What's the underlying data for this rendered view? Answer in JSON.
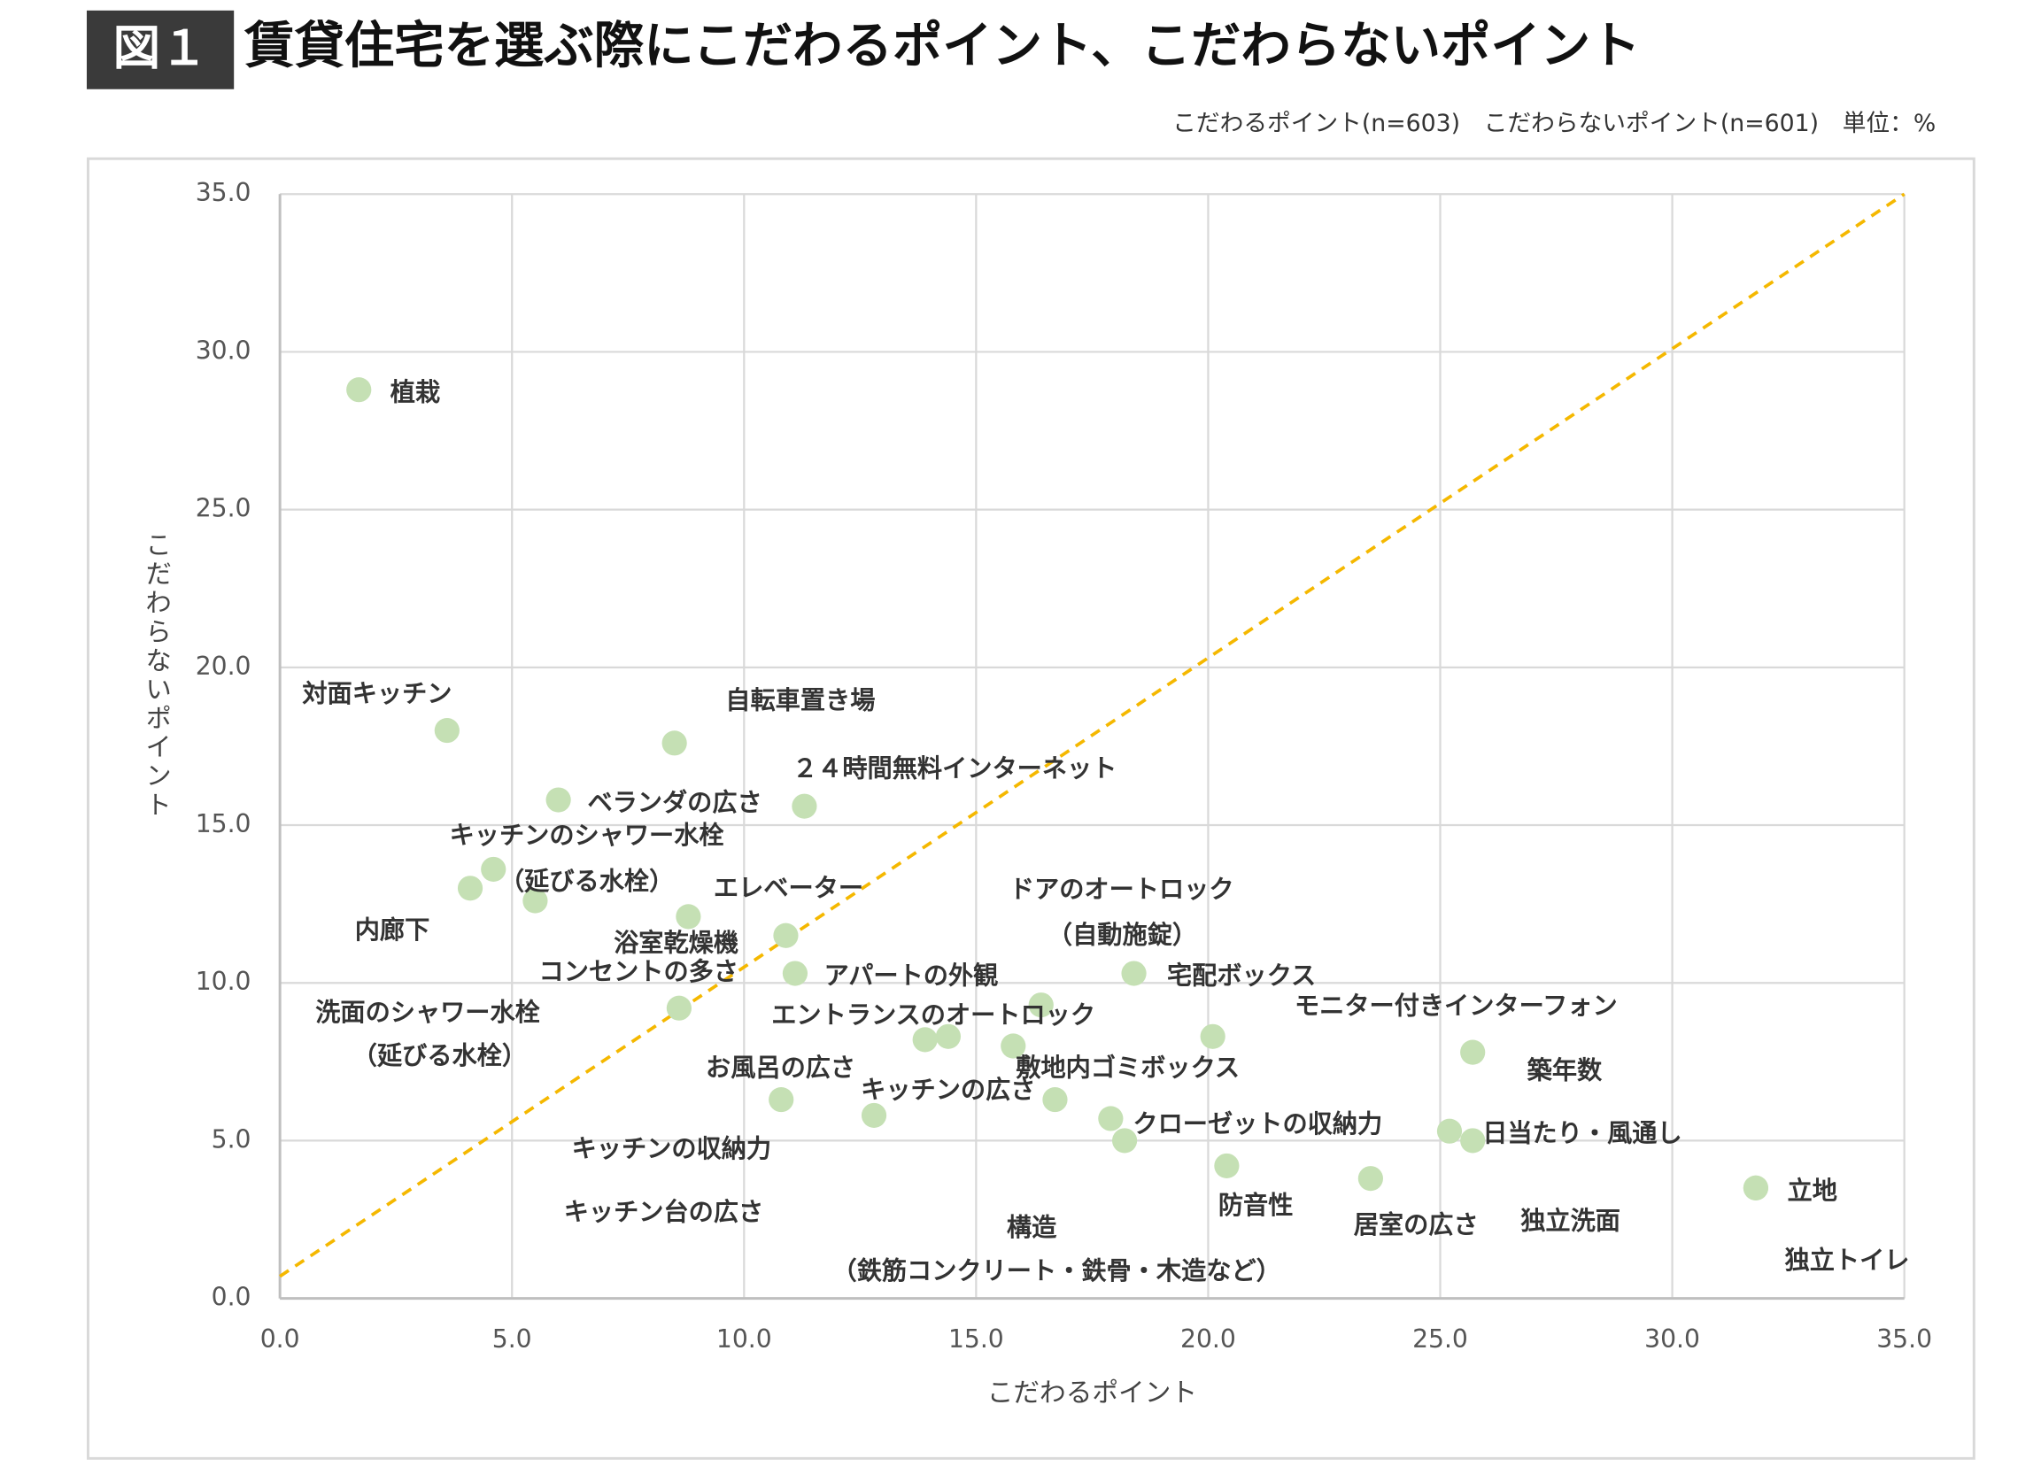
{
  "chart_data": {
    "type": "scatter",
    "figure_label": "図１",
    "title": "賃貸住宅を選ぶ際にこだわるポイント、こだわらないポイント",
    "subtitle": "こだわるポイント(n=603)　こだわらないポイント(n=601)　単位：%",
    "x_label": "こだわるポイント",
    "y_label": "こだわらないポイント",
    "xlim": [
      0,
      35
    ],
    "ylim": [
      0,
      35
    ],
    "xticks": [
      {
        "value": 0,
        "label": "0.0"
      },
      {
        "value": 5,
        "label": "5.0"
      },
      {
        "value": 10,
        "label": "10.0"
      },
      {
        "value": 15,
        "label": "15.0"
      },
      {
        "value": 20,
        "label": "20.0"
      },
      {
        "value": 25,
        "label": "25.0"
      },
      {
        "value": 30,
        "label": "30.0"
      },
      {
        "value": 35,
        "label": "35.0"
      }
    ],
    "yticks": [
      {
        "value": 0,
        "label": "0.0"
      },
      {
        "value": 5,
        "label": "5.0"
      },
      {
        "value": 10,
        "label": "10.0"
      },
      {
        "value": 15,
        "label": "15.0"
      },
      {
        "value": 20,
        "label": "20.0"
      },
      {
        "value": 25,
        "label": "25.0"
      },
      {
        "value": 30,
        "label": "30.0"
      },
      {
        "value": 35,
        "label": "35.0"
      }
    ],
    "grid": true,
    "color": "#c5e0b4",
    "reference_line": {
      "x": [
        0,
        35
      ],
      "y": [
        0.7,
        35
      ],
      "color": "#f5b800"
    },
    "labels": [
      "植栽",
      "対面キッチン",
      "自転車置き場",
      "ベランダの広さ",
      "２４時間無料インターネット",
      "キッチンのシャワー水栓（延びる水栓）",
      "内廊下",
      "洗面のシャワー水栓（延びる水栓）",
      "エレベーター",
      "浴室乾燥機",
      "コンセントの多さ",
      "アパートの外観",
      "ドアのオートロック（自動施錠）",
      "宅配ボックス",
      "エントランスのオートロック",
      "お風呂の広さ",
      "敷地内ゴミボックス",
      "キッチンの広さ",
      "モニター付きインターフォン",
      "築年数",
      "キッチンの収納力",
      "キッチン台の広さ",
      "クローゼットの収納力",
      "構造（鉄筋コンクリート・鉄骨・木造など）",
      "日当たり・風通し",
      "独立洗面",
      "防音性",
      "居室の広さ",
      "立地",
      "独立トイレ"
    ],
    "x": [
      1.7,
      3.6,
      8.5,
      6.0,
      11.3,
      4.6,
      4.1,
      5.5,
      8.8,
      10.9,
      8.6,
      11.1,
      16.4,
      18.4,
      14.4,
      13.9,
      15.8,
      16.7,
      20.1,
      25.7,
      10.8,
      12.8,
      17.9,
      18.2,
      25.2,
      25.7,
      20.4,
      23.5,
      31.8,
      31.8
    ],
    "y": [
      28.8,
      18.0,
      17.6,
      15.8,
      15.6,
      13.6,
      13.0,
      12.6,
      12.1,
      11.5,
      9.2,
      10.3,
      9.3,
      10.3,
      8.3,
      8.2,
      8.0,
      6.3,
      8.3,
      7.8,
      6.3,
      5.8,
      5.7,
      5.0,
      5.3,
      5.0,
      4.2,
      3.8,
      3.5,
      3.5
    ]
  }
}
